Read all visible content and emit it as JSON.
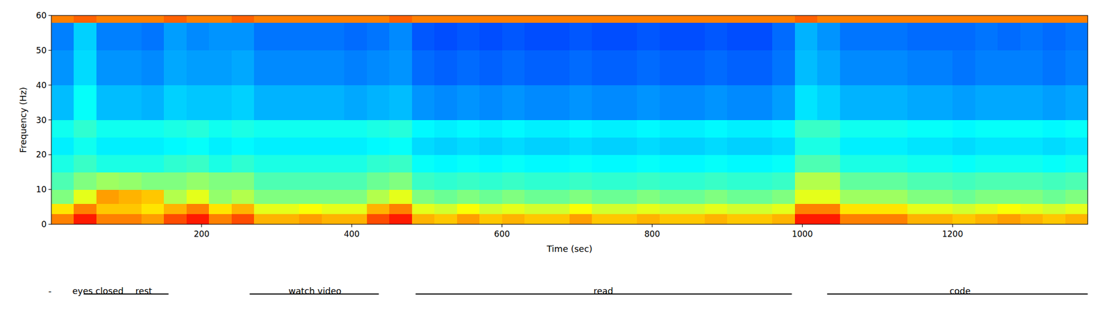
{
  "chart_data": {
    "type": "heatmap",
    "xlabel": "Time (sec)",
    "ylabel": "Frequency (Hz)",
    "xlim": [
      0,
      1380
    ],
    "ylim": [
      0,
      60
    ],
    "xticks": [
      200,
      400,
      600,
      800,
      1000,
      1200
    ],
    "yticks": [
      0,
      10,
      20,
      30,
      40,
      50,
      60
    ],
    "zlim": [
      0,
      10
    ],
    "x_edges": [
      0,
      30,
      60,
      90,
      120,
      150,
      180,
      210,
      240,
      270,
      300,
      330,
      360,
      390,
      420,
      450,
      480,
      510,
      540,
      570,
      600,
      630,
      660,
      690,
      720,
      750,
      780,
      810,
      840,
      870,
      900,
      930,
      960,
      990,
      1020,
      1050,
      1080,
      1110,
      1140,
      1170,
      1200,
      1230,
      1260,
      1290,
      1320,
      1350,
      1380
    ],
    "y_edges": [
      0,
      3,
      6,
      10,
      15,
      20,
      25,
      30,
      40,
      50,
      58,
      60
    ],
    "cells": [
      [
        7.5,
        8.5,
        7.5,
        7.5,
        7.2,
        8,
        8.5,
        7.5,
        8,
        7,
        7,
        7.2,
        7,
        7,
        8,
        8.5,
        7,
        6.8,
        7.2,
        6.8,
        7,
        6.8,
        6.8,
        7.2,
        6.8,
        6.8,
        7,
        6.8,
        6.8,
        7,
        6.8,
        6.8,
        7,
        8.5,
        8.5,
        7.5,
        7.5,
        7.5,
        7,
        7,
        6.8,
        7,
        7.2,
        7,
        6.8,
        7
      ],
      [
        6.5,
        7.5,
        6.8,
        6.8,
        6.5,
        7,
        7.5,
        6.5,
        7,
        6,
        6,
        6.2,
        6,
        6,
        7,
        7.5,
        6,
        5.8,
        6.2,
        5.8,
        6,
        5.8,
        5.8,
        6.2,
        5.8,
        5.8,
        6,
        5.8,
        5.8,
        6,
        5.8,
        5.8,
        6,
        7.5,
        7.5,
        6.5,
        6.5,
        6.5,
        6,
        6,
        5.8,
        6,
        6.2,
        6,
        5.8,
        6
      ],
      [
        5,
        6,
        7.2,
        7,
        6.8,
        5.5,
        6,
        5.2,
        5.5,
        5,
        5,
        5,
        5,
        5,
        5.5,
        6,
        5,
        4.8,
        5,
        4.8,
        5,
        4.8,
        4.8,
        5,
        4.8,
        4.8,
        5,
        4.8,
        4.8,
        5,
        4.8,
        4.8,
        5,
        6,
        6,
        5.3,
        5.3,
        5.3,
        5,
        5,
        4.8,
        5,
        5,
        5,
        4.8,
        5
      ],
      [
        4.5,
        5,
        5.3,
        5.2,
        5,
        5,
        5.2,
        5,
        5,
        4.5,
        4.5,
        4.5,
        4.5,
        4.5,
        4.8,
        5,
        4.3,
        4.2,
        4.3,
        4.2,
        4.3,
        4.2,
        4.2,
        4.3,
        4.2,
        4.2,
        4.3,
        4.2,
        4.2,
        4.3,
        4.2,
        4.2,
        4.3,
        5.5,
        5.5,
        4.7,
        4.7,
        4.7,
        4.5,
        4.5,
        4.4,
        4.5,
        4.5,
        4.5,
        4.4,
        4.5
      ],
      [
        4,
        4.3,
        4,
        4,
        4,
        4.2,
        4.3,
        4,
        4.2,
        4,
        4,
        4,
        4,
        4,
        4.2,
        4.3,
        3.8,
        3.7,
        3.8,
        3.7,
        3.8,
        3.7,
        3.7,
        3.8,
        3.7,
        3.7,
        3.8,
        3.7,
        3.7,
        3.8,
        3.7,
        3.7,
        3.8,
        4.5,
        4.5,
        4,
        4,
        4,
        3.9,
        3.9,
        3.8,
        3.9,
        3.9,
        3.9,
        3.8,
        3.9
      ],
      [
        3.6,
        3.9,
        3.6,
        3.6,
        3.6,
        3.7,
        3.8,
        3.6,
        3.7,
        3.6,
        3.6,
        3.6,
        3.6,
        3.6,
        3.7,
        3.8,
        3.4,
        3.3,
        3.4,
        3.3,
        3.4,
        3.3,
        3.3,
        3.4,
        3.3,
        3.3,
        3.4,
        3.3,
        3.3,
        3.4,
        3.3,
        3.3,
        3.4,
        4,
        4,
        3.6,
        3.6,
        3.6,
        3.5,
        3.5,
        3.4,
        3.5,
        3.5,
        3.5,
        3.4,
        3.5
      ],
      [
        3.9,
        4.2,
        3.9,
        3.9,
        3.9,
        4,
        4.1,
        3.9,
        4,
        3.9,
        3.9,
        3.9,
        3.9,
        3.9,
        4,
        4.1,
        3.7,
        3.6,
        3.7,
        3.6,
        3.7,
        3.6,
        3.6,
        3.7,
        3.6,
        3.6,
        3.7,
        3.6,
        3.6,
        3.7,
        3.6,
        3.6,
        3.7,
        4.3,
        4.3,
        3.9,
        3.9,
        3.9,
        3.8,
        3.8,
        3.7,
        3.8,
        3.8,
        3.8,
        3.7,
        3.8
      ],
      [
        3.1,
        3.8,
        3.1,
        3.1,
        3,
        3.3,
        3.2,
        3.2,
        3.3,
        3,
        3,
        3,
        3,
        2.9,
        3,
        3.1,
        2.7,
        2.6,
        2.7,
        2.6,
        2.7,
        2.6,
        2.6,
        2.7,
        2.6,
        2.6,
        2.7,
        2.6,
        2.6,
        2.7,
        2.6,
        2.6,
        2.8,
        3.5,
        3.3,
        3,
        3,
        3,
        2.9,
        2.9,
        2.8,
        2.9,
        2.9,
        2.9,
        2.8,
        2.9
      ],
      [
        2.7,
        3.4,
        2.7,
        2.7,
        2.6,
        2.9,
        2.8,
        2.8,
        2.9,
        2.6,
        2.6,
        2.6,
        2.6,
        2.5,
        2.6,
        2.7,
        2.3,
        2.2,
        2.3,
        2.2,
        2.3,
        2.2,
        2.2,
        2.3,
        2.2,
        2.2,
        2.3,
        2.2,
        2.2,
        2.3,
        2.2,
        2.2,
        2.4,
        3.1,
        2.9,
        2.6,
        2.6,
        2.6,
        2.5,
        2.5,
        2.4,
        2.5,
        2.5,
        2.5,
        2.4,
        2.5
      ],
      [
        2.5,
        3.3,
        2.5,
        2.5,
        2.4,
        2.8,
        2.6,
        2.7,
        2.7,
        2.4,
        2.4,
        2.4,
        2.4,
        2.3,
        2.4,
        2.6,
        2.1,
        2,
        2.1,
        2,
        2.1,
        2,
        2,
        2.1,
        2,
        2,
        2.1,
        2,
        2,
        2.1,
        2,
        2,
        2.3,
        3,
        2.7,
        2.4,
        2.4,
        2.4,
        2.3,
        2.3,
        2.3,
        2.4,
        2.3,
        2.4,
        2.3,
        2.4
      ],
      [
        7.5,
        7.8,
        7.5,
        7.5,
        7.5,
        7.8,
        7.5,
        7.5,
        7.8,
        7.5,
        7.5,
        7.5,
        7.5,
        7.5,
        7.5,
        7.8,
        7.5,
        7.5,
        7.5,
        7.5,
        7.5,
        7.5,
        7.5,
        7.5,
        7.5,
        7.5,
        7.5,
        7.5,
        7.5,
        7.5,
        7.5,
        7.5,
        7.5,
        7.8,
        7.5,
        7.5,
        7.5,
        7.5,
        7.5,
        7.5,
        7.5,
        7.5,
        7.5,
        7.5,
        7.5,
        7.5
      ]
    ],
    "annotations": [
      {
        "text": "-",
        "x": -2
      },
      {
        "text": "eyes closed",
        "x": 62
      },
      {
        "text": "rest",
        "x": 123
      },
      {
        "text": "watch video",
        "x": 351
      },
      {
        "text": "read",
        "x": 735
      },
      {
        "text": "code",
        "x": 1210
      }
    ],
    "segments": [
      {
        "start": 43,
        "end": 156
      },
      {
        "start": 264,
        "end": 436
      },
      {
        "start": 485,
        "end": 986
      },
      {
        "start": 1033,
        "end": 1380
      }
    ]
  }
}
